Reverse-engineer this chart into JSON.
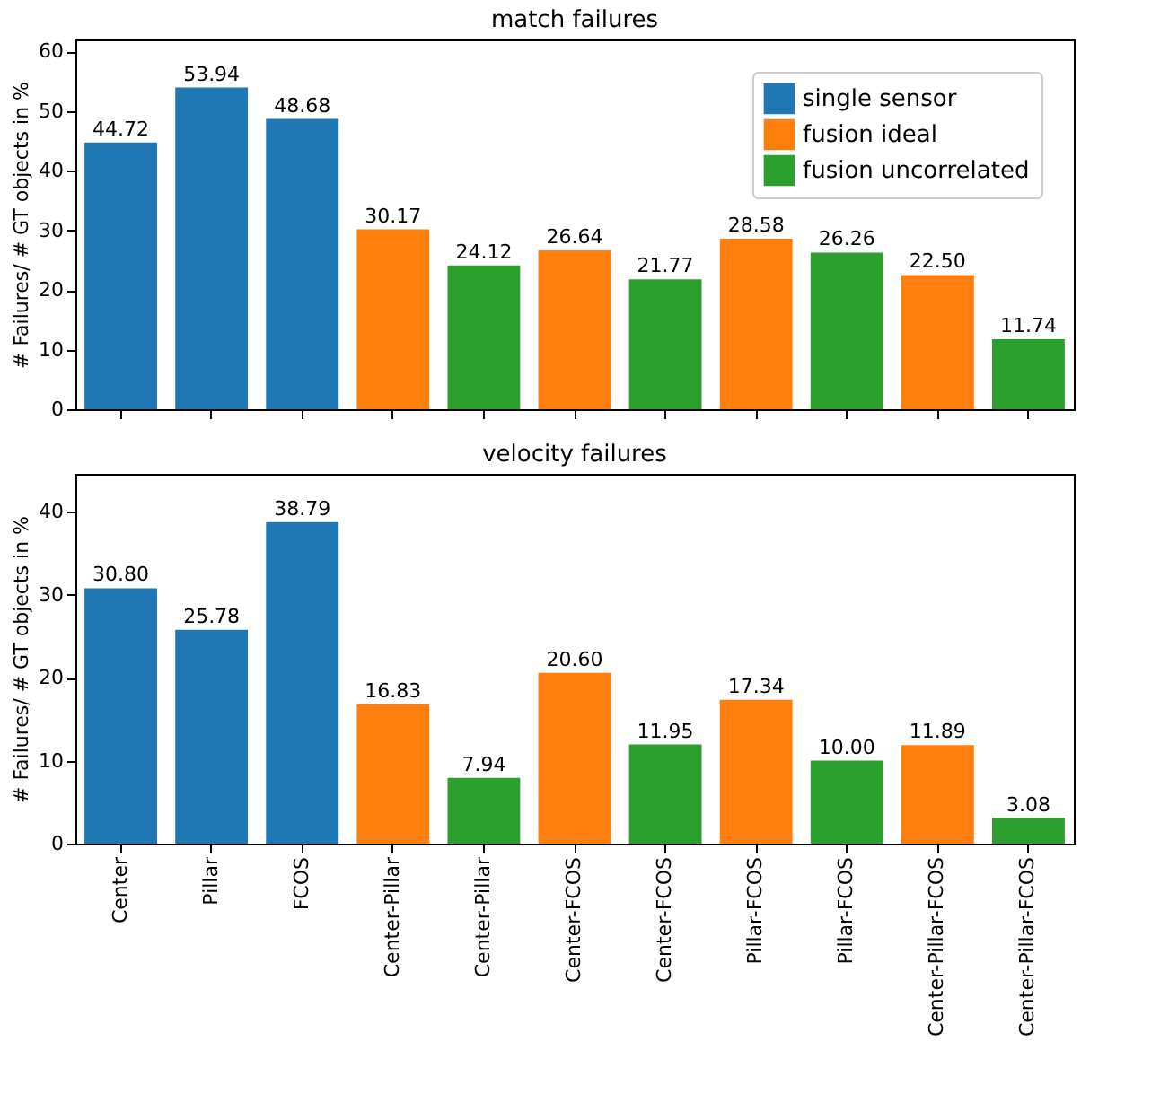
{
  "chart_data": [
    {
      "type": "bar",
      "title": "match failures",
      "ylabel": "# Failures/ # GT objects in %",
      "categories": [
        "Center",
        "Pillar",
        "FCOS",
        "Center-Pillar",
        "Center-Pillar",
        "Center-FCOS",
        "Center-FCOS",
        "Pillar-FCOS",
        "Pillar-FCOS",
        "Center-Pillar-FCOS",
        "Center-Pillar-FCOS"
      ],
      "series": [
        {
          "name": "single sensor",
          "color": "#1f77b4",
          "values": [
            44.72,
            53.94,
            48.68,
            null,
            null,
            null,
            null,
            null,
            null,
            null,
            null
          ],
          "value_labels": [
            "44.72",
            "53.94",
            "48.68",
            null,
            null,
            null,
            null,
            null,
            null,
            null,
            null
          ]
        },
        {
          "name": "fusion ideal",
          "color": "#ff7f0e",
          "values": [
            null,
            null,
            null,
            30.17,
            null,
            26.64,
            null,
            28.58,
            null,
            22.5,
            null
          ],
          "value_labels": [
            null,
            null,
            null,
            "30.17",
            null,
            "26.64",
            null,
            "28.58",
            null,
            "22.50",
            null
          ]
        },
        {
          "name": "fusion uncorrelated",
          "color": "#2ca02c",
          "values": [
            null,
            null,
            null,
            null,
            24.12,
            null,
            21.77,
            null,
            26.26,
            null,
            11.74
          ],
          "value_labels": [
            null,
            null,
            null,
            null,
            "24.12",
            null,
            "21.77",
            null,
            "26.26",
            null,
            "11.74"
          ]
        }
      ],
      "ylim": [
        0,
        62
      ],
      "yticks": [
        0,
        10,
        20,
        30,
        40,
        50,
        60
      ],
      "legend": "top right",
      "tick_labels": "y"
    },
    {
      "type": "bar",
      "title": "velocity failures",
      "ylabel": "# Failures/ # GT objects in %",
      "categories": [
        "Center",
        "Pillar",
        "FCOS",
        "Center-Pillar",
        "Center-Pillar",
        "Center-FCOS",
        "Center-FCOS",
        "Pillar-FCOS",
        "Pillar-FCOS",
        "Center-Pillar-FCOS",
        "Center-Pillar-FCOS"
      ],
      "series": [
        {
          "name": "single sensor",
          "color": "#1f77b4",
          "values": [
            30.8,
            25.78,
            38.79,
            null,
            null,
            null,
            null,
            null,
            null,
            null,
            null
          ],
          "value_labels": [
            "30.80",
            "25.78",
            "38.79",
            null,
            null,
            null,
            null,
            null,
            null,
            null,
            null
          ]
        },
        {
          "name": "fusion ideal",
          "color": "#ff7f0e",
          "values": [
            null,
            null,
            null,
            16.83,
            null,
            20.6,
            null,
            17.34,
            null,
            11.89,
            null
          ],
          "value_labels": [
            null,
            null,
            null,
            "16.83",
            null,
            "20.60",
            null,
            "17.34",
            null,
            "11.89",
            null
          ]
        },
        {
          "name": "fusion uncorrelated",
          "color": "#2ca02c",
          "values": [
            null,
            null,
            null,
            null,
            7.94,
            null,
            11.95,
            null,
            10.0,
            null,
            3.08
          ],
          "value_labels": [
            null,
            null,
            null,
            null,
            "7.94",
            null,
            "11.95",
            null,
            "10.00",
            null,
            "3.08"
          ]
        }
      ],
      "ylim": [
        0,
        44.6
      ],
      "yticks": [
        0,
        10,
        20,
        30,
        40
      ],
      "legend": "top right"
    }
  ]
}
